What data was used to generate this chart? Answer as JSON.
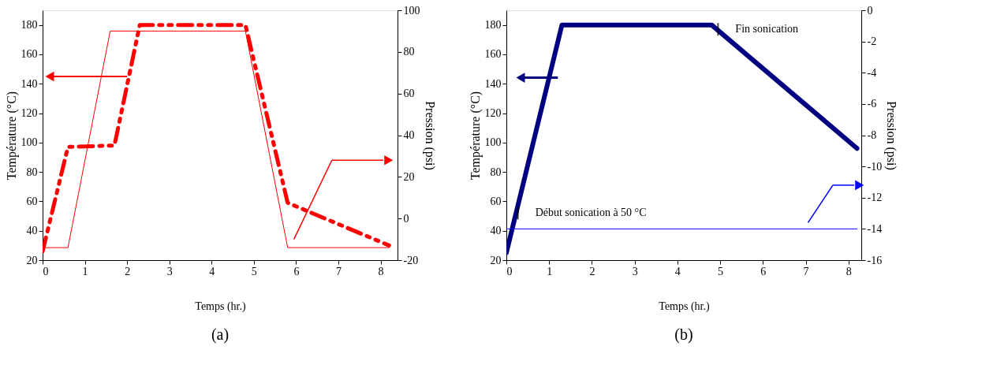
{
  "chart_data": [
    {
      "type": "line",
      "title": "(a)",
      "xlabel": "Temps (hr.)",
      "ylabel": "Température (°C)",
      "y2label": "Pression (psi)",
      "xlim": [
        0,
        8.4
      ],
      "xticks": [
        0,
        1,
        2,
        3,
        4,
        5,
        6,
        7,
        8
      ],
      "ylim": [
        20,
        190
      ],
      "yticks": [
        20,
        40,
        60,
        80,
        100,
        120,
        140,
        160,
        180
      ],
      "y2lim": [
        -20,
        100
      ],
      "y2ticks": [
        -20,
        0,
        20,
        40,
        60,
        80,
        100
      ],
      "series": [
        {
          "color": "#ff0000",
          "line_style": "dashed",
          "x": [
            0,
            0.6,
            1.7,
            2.3,
            4.8,
            5.8,
            8.2
          ],
          "values": [
            26,
            97,
            98,
            180,
            180,
            59,
            30
          ]
        },
        {
          "color": "#ff0000",
          "line_style": "solid",
          "axis": "y2",
          "x": [
            0,
            0.6,
            1.6,
            4.8,
            5.8,
            8.2
          ],
          "values": [
            -14,
            -14,
            90,
            90,
            -14,
            -14
          ]
        }
      ]
    },
    {
      "type": "line",
      "title": "(b)",
      "xlabel": "Temps (hr.)",
      "ylabel": "Température (°C)",
      "y2label": "Pression (psi)",
      "xlim": [
        0,
        8.3
      ],
      "xticks": [
        0,
        1,
        2,
        3,
        4,
        5,
        6,
        7,
        8
      ],
      "ylim": [
        20,
        190
      ],
      "yticks": [
        20,
        40,
        60,
        80,
        100,
        120,
        140,
        160,
        180
      ],
      "y2lim": [
        -16,
        0
      ],
      "y2ticks": [
        -16,
        -14,
        -12,
        -10,
        -8,
        -6,
        -4,
        -2,
        0
      ],
      "series": [
        {
          "color": "#000080",
          "line_style": "solid",
          "x": [
            0,
            1.3,
            4.8,
            8.2
          ],
          "values": [
            25,
            180,
            180,
            96
          ]
        },
        {
          "color": "#0000ff",
          "line_style": "solid",
          "axis": "y2",
          "x": [
            0,
            8.2
          ],
          "values": [
            -14,
            -14
          ]
        }
      ],
      "annotations": [
        {
          "text": "Début sonication à 50 °C",
          "x": 0.27,
          "y": 52
        },
        {
          "text": "Fin sonication",
          "x": 4.95,
          "y": 177
        }
      ]
    }
  ]
}
